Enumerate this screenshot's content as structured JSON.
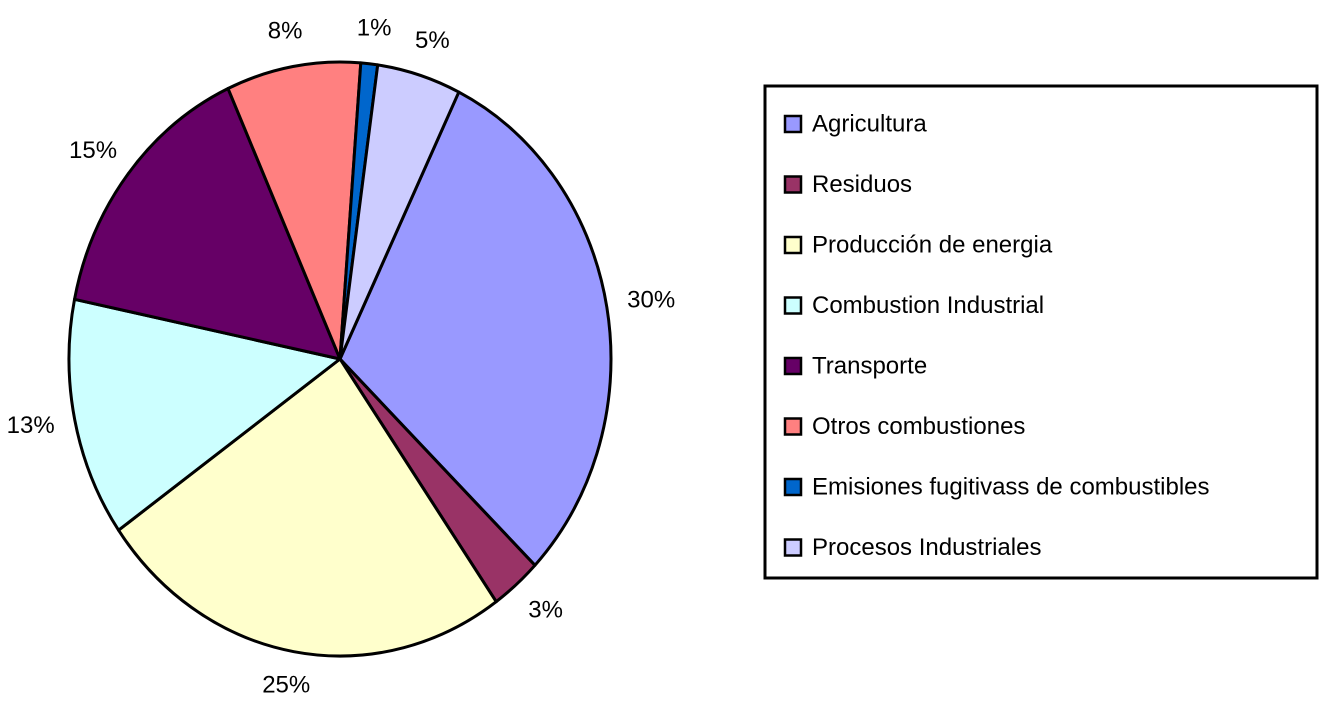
{
  "chart_data": {
    "type": "pie",
    "categories": [
      "Agricultura",
      "Residuos",
      "Producción de energia",
      "Combustion Industrial",
      "Transporte",
      "Otros combustiones",
      "Emisiones fugitivass de combustibles",
      "Procesos Industriales"
    ],
    "values": [
      30,
      3,
      25,
      13,
      15,
      8,
      1,
      5
    ],
    "value_labels": [
      "30%",
      "3%",
      "25%",
      "13%",
      "15%",
      "8%",
      "1%",
      "5%"
    ],
    "colors": [
      "#9999ff",
      "#993366",
      "#ffffcc",
      "#ccffff",
      "#660066",
      "#ff8080",
      "#0066cc",
      "#ccccff"
    ],
    "legend": "right"
  }
}
